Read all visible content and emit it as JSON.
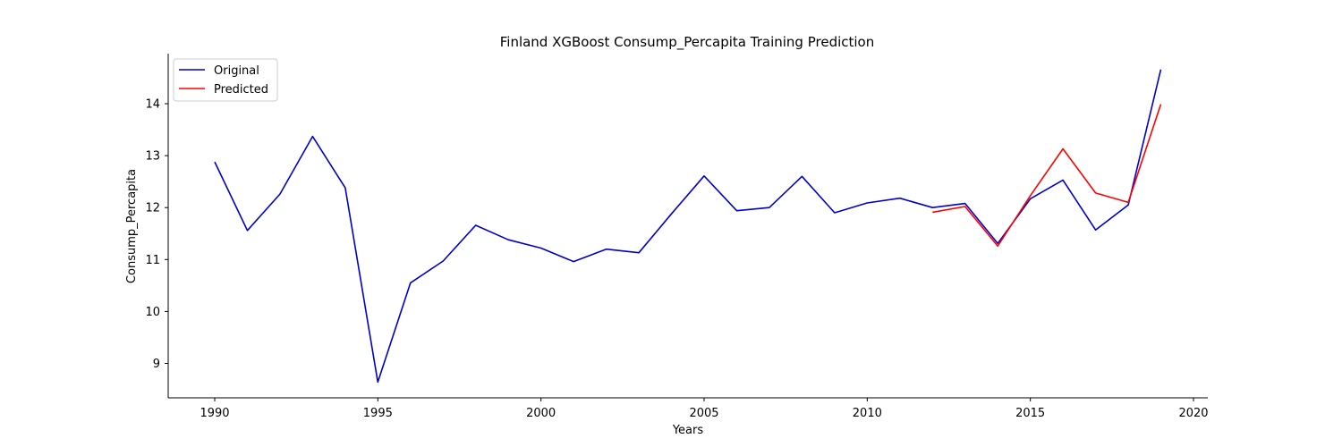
{
  "chart_data": {
    "type": "line",
    "title": "Finland XGBoost Consump_Percapita Training Prediction",
    "xlabel": "Years",
    "ylabel": "Consump_Percapita",
    "xlim": [
      1988.55,
      1990.0
    ],
    "ylim": [
      8.28,
      14.96
    ],
    "xticks": [
      1990,
      1995,
      2000,
      2005,
      2010,
      2015,
      2020
    ],
    "yticks": [
      9,
      10,
      11,
      12,
      13,
      14
    ],
    "grid": false,
    "legend": "top-left",
    "series": [
      {
        "name": "Original",
        "color": "#0000cc",
        "x": [
          1990,
          1991,
          1992,
          1993,
          1994,
          1995,
          1996,
          1997,
          1998,
          1999,
          2000,
          2001,
          2002,
          2003,
          2004,
          2005,
          2006,
          2007,
          2008,
          2009,
          2010,
          2011,
          2012,
          2013,
          2014,
          2015,
          2016,
          2017,
          2018,
          2019
        ],
        "y": [
          12.88,
          11.56,
          12.26,
          13.37,
          12.38,
          8.64,
          10.55,
          10.97,
          11.66,
          11.38,
          11.22,
          10.96,
          11.2,
          11.13,
          11.88,
          12.61,
          11.94,
          12.0,
          12.6,
          11.9,
          12.09,
          12.18,
          12.0,
          12.08,
          11.31,
          12.17,
          12.53,
          11.57,
          12.05,
          14.66
        ]
      },
      {
        "name": "Predicted",
        "color": "#ff0000",
        "x": [
          2012,
          2013,
          2014,
          2015,
          2016,
          2017,
          2018,
          2019
        ],
        "y": [
          11.91,
          12.02,
          11.26,
          12.23,
          13.13,
          12.28,
          12.1,
          13.99
        ]
      }
    ]
  }
}
